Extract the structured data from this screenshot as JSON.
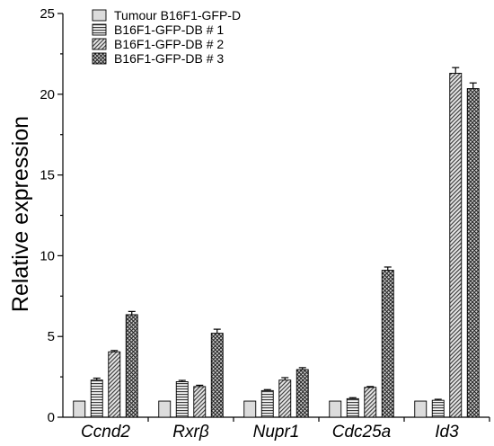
{
  "chart_data": {
    "type": "bar",
    "title": "",
    "xlabel": "",
    "ylabel": "Relative expression",
    "ylim": [
      0,
      25
    ],
    "yticks": [
      "0",
      "5",
      "10",
      "15",
      "20",
      "25"
    ],
    "categories": [
      "Ccnd2",
      "Rxrβ",
      "Nupr1",
      "Cdc25a",
      "Id3"
    ],
    "legend_position": "top-left",
    "grid": false,
    "series": [
      {
        "name": "Tumour B16F1-GFP-D",
        "pattern": "light-gray-solid",
        "color": "#dddddd",
        "values": [
          1.0,
          1.0,
          1.0,
          1.0,
          1.0
        ],
        "errors": [
          0,
          0,
          0,
          0,
          0
        ]
      },
      {
        "name": "B16F1-GFP-DB # 1",
        "pattern": "horizontal-lines",
        "color": "#888888",
        "values": [
          2.3,
          2.2,
          1.65,
          1.15,
          1.05
        ],
        "errors": [
          0.12,
          0.08,
          0.06,
          0.06,
          0.06
        ]
      },
      {
        "name": "B16F1-GFP-DB # 2",
        "pattern": "diagonal-lines",
        "color": "#888888",
        "values": [
          4.05,
          1.9,
          2.3,
          1.85,
          21.3
        ],
        "errors": [
          0.08,
          0.08,
          0.15,
          0.05,
          0.35
        ]
      },
      {
        "name": "B16F1-GFP-DB # 3",
        "pattern": "crosshatch",
        "color": "#555555",
        "values": [
          6.35,
          5.2,
          2.95,
          9.1,
          20.35
        ],
        "errors": [
          0.2,
          0.25,
          0.12,
          0.2,
          0.35
        ]
      }
    ]
  }
}
